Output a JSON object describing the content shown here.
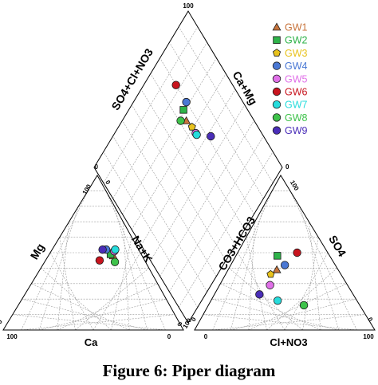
{
  "caption": "Figure 6: Piper diagram",
  "chart_data": {
    "type": "piper",
    "axis_labels": {
      "diamond_left": "SO4+Cl+NO3",
      "diamond_right": "Ca+Mg",
      "cation_left": "Mg",
      "cation_right": "Na+K",
      "cation_bottom": "Ca",
      "anion_left": "CO3+HCO3",
      "anion_right": "SO4",
      "anion_bottom": "Cl+NO3"
    },
    "ticks": {
      "diamond_top": "100",
      "diamond_left": "0",
      "diamond_right": "0",
      "cation_apex": "100",
      "cation_bottom_left": "100",
      "cation_left_base": "0",
      "cation_right_base": "0",
      "cation_bottom_right": "0",
      "anion_apex": "100",
      "anion_left_base": "0",
      "anion_right_base": "0",
      "anion_bottom_left": "0",
      "anion_bottom_right": "100",
      "anion_bottom_left2": "100"
    },
    "legend_position": "top-right",
    "series": [
      {
        "name": "GW1",
        "color": "#c8743c",
        "marker": "triangle",
        "cation": {
          "ca": 16,
          "mg": 48,
          "nak": 36
        },
        "anion": {
          "hco3": 34,
          "cl": 27,
          "so4": 39
        }
      },
      {
        "name": "GW2",
        "color": "#2fb34a",
        "marker": "square",
        "cation": {
          "ca": 17,
          "mg": 49,
          "nak": 34
        },
        "anion": {
          "hco3": 29,
          "cl": 23,
          "so4": 48
        }
      },
      {
        "name": "GW3",
        "color": "#e8c21c",
        "marker": "pentagon",
        "cation": {
          "ca": 14,
          "mg": 51,
          "nak": 35
        },
        "anion": {
          "hco3": 39,
          "cl": 25,
          "so4": 36
        }
      },
      {
        "name": "GW4",
        "color": "#4a78d4",
        "marker": "circle",
        "cation": {
          "ca": 18,
          "mg": 52,
          "nak": 30
        },
        "anion": {
          "hco3": 28,
          "cl": 30,
          "so4": 42
        }
      },
      {
        "name": "GW5",
        "color": "#e070e8",
        "marker": "circle",
        "cation": {
          "ca": 14,
          "mg": 51,
          "nak": 35
        },
        "anion": {
          "hco3": 43,
          "cl": 28,
          "so4": 29
        }
      },
      {
        "name": "GW6",
        "color": "#c8141e",
        "marker": "circle",
        "cation": {
          "ca": 25,
          "mg": 45,
          "nak": 30
        },
        "anion": {
          "hco3": 17,
          "cl": 33,
          "so4": 50
        }
      },
      {
        "name": "GW7",
        "color": "#26dcdc",
        "marker": "circle",
        "cation": {
          "ca": 13,
          "mg": 52,
          "nak": 35
        },
        "anion": {
          "hco3": 44,
          "cl": 37,
          "so4": 19
        }
      },
      {
        "name": "GW8",
        "color": "#3ec24a",
        "marker": "circle",
        "cation": {
          "ca": 17,
          "mg": 44,
          "nak": 39
        },
        "anion": {
          "hco3": 31,
          "cl": 53,
          "so4": 16
        }
      },
      {
        "name": "GW9",
        "color": "#4a2eb8",
        "marker": "circle",
        "cation": {
          "ca": 20,
          "mg": 52,
          "nak": 28
        },
        "anion": {
          "hco3": 52,
          "cl": 25,
          "so4": 23
        }
      }
    ]
  }
}
